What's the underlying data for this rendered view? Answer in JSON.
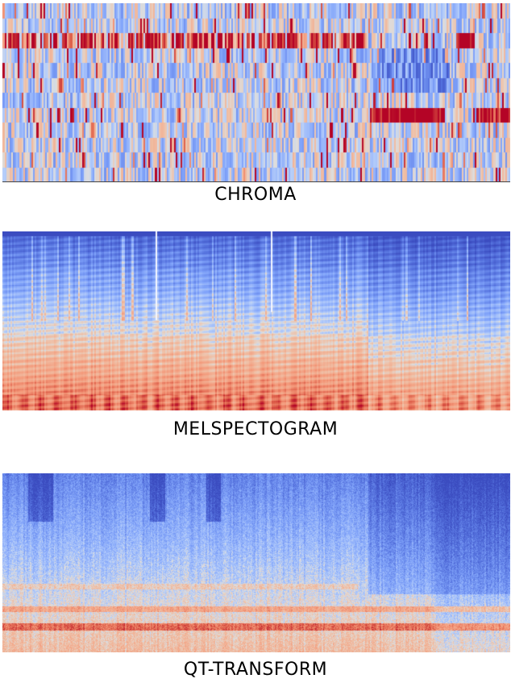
{
  "panels": [
    {
      "title": "CHROMA",
      "kind": "chroma",
      "colormap": "coolwarm"
    },
    {
      "title": "MELSPECTOGRAM",
      "kind": "mel",
      "colormap": "coolwarm"
    },
    {
      "title": "QT-TRANSFORM",
      "kind": "cqt",
      "colormap": "coolwarm"
    }
  ],
  "colors": {
    "low": "#3b4cc0",
    "mid": "#dddddd",
    "high": "#b40426"
  }
}
